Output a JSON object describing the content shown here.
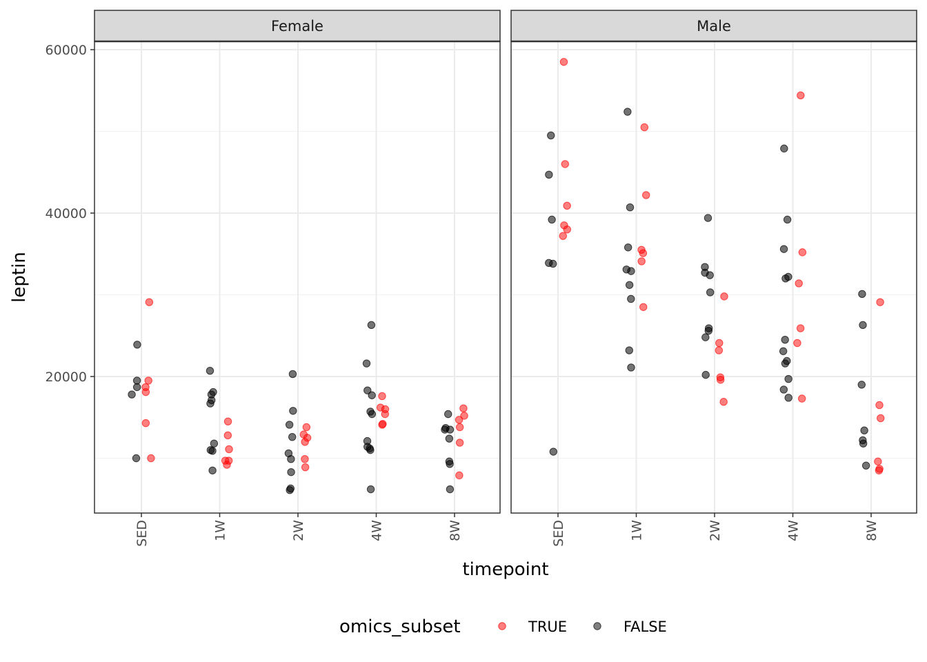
{
  "chart_data": {
    "type": "scatter",
    "title": "",
    "xlabel": "timepoint",
    "ylabel": "leptin",
    "categories": [
      "SED",
      "1W",
      "2W",
      "4W",
      "8W"
    ],
    "ylim": [
      3000,
      62000
    ],
    "yticks": [
      20000,
      40000,
      60000
    ],
    "grid": true,
    "legend": {
      "title": "omics_subset",
      "position": "bottom",
      "entries": [
        {
          "label": "TRUE",
          "color": "#ff0000"
        },
        {
          "label": "FALSE",
          "color": "#000000"
        }
      ]
    },
    "panels": [
      {
        "name": "Female",
        "points": [
          {
            "x": "SED",
            "y": 23900,
            "subset": false
          },
          {
            "x": "SED",
            "y": 19500,
            "subset": false
          },
          {
            "x": "SED",
            "y": 18700,
            "subset": false
          },
          {
            "x": "SED",
            "y": 17800,
            "subset": false
          },
          {
            "x": "SED",
            "y": 10000,
            "subset": false
          },
          {
            "x": "SED",
            "y": 29100,
            "subset": true
          },
          {
            "x": "SED",
            "y": 19500,
            "subset": true
          },
          {
            "x": "SED",
            "y": 18700,
            "subset": true
          },
          {
            "x": "SED",
            "y": 18100,
            "subset": true
          },
          {
            "x": "SED",
            "y": 14300,
            "subset": true
          },
          {
            "x": "SED",
            "y": 10000,
            "subset": true
          },
          {
            "x": "1W",
            "y": 20700,
            "subset": false
          },
          {
            "x": "1W",
            "y": 18100,
            "subset": false
          },
          {
            "x": "1W",
            "y": 17800,
            "subset": false
          },
          {
            "x": "1W",
            "y": 17100,
            "subset": false
          },
          {
            "x": "1W",
            "y": 16700,
            "subset": false
          },
          {
            "x": "1W",
            "y": 11800,
            "subset": false
          },
          {
            "x": "1W",
            "y": 11000,
            "subset": false
          },
          {
            "x": "1W",
            "y": 10900,
            "subset": false
          },
          {
            "x": "1W",
            "y": 8500,
            "subset": false
          },
          {
            "x": "1W",
            "y": 14500,
            "subset": true
          },
          {
            "x": "1W",
            "y": 12800,
            "subset": true
          },
          {
            "x": "1W",
            "y": 11100,
            "subset": true
          },
          {
            "x": "1W",
            "y": 9700,
            "subset": true
          },
          {
            "x": "1W",
            "y": 9700,
            "subset": true
          },
          {
            "x": "1W",
            "y": 9200,
            "subset": true
          },
          {
            "x": "2W",
            "y": 20300,
            "subset": false
          },
          {
            "x": "2W",
            "y": 15800,
            "subset": false
          },
          {
            "x": "2W",
            "y": 14100,
            "subset": false
          },
          {
            "x": "2W",
            "y": 12600,
            "subset": false
          },
          {
            "x": "2W",
            "y": 10600,
            "subset": false
          },
          {
            "x": "2W",
            "y": 9900,
            "subset": false
          },
          {
            "x": "2W",
            "y": 8300,
            "subset": false
          },
          {
            "x": "2W",
            "y": 6300,
            "subset": false
          },
          {
            "x": "2W",
            "y": 6100,
            "subset": false
          },
          {
            "x": "2W",
            "y": 13800,
            "subset": true
          },
          {
            "x": "2W",
            "y": 12900,
            "subset": true
          },
          {
            "x": "2W",
            "y": 12500,
            "subset": true
          },
          {
            "x": "2W",
            "y": 12000,
            "subset": true
          },
          {
            "x": "2W",
            "y": 9900,
            "subset": true
          },
          {
            "x": "2W",
            "y": 8900,
            "subset": true
          },
          {
            "x": "4W",
            "y": 26300,
            "subset": false
          },
          {
            "x": "4W",
            "y": 21600,
            "subset": false
          },
          {
            "x": "4W",
            "y": 18300,
            "subset": false
          },
          {
            "x": "4W",
            "y": 17700,
            "subset": false
          },
          {
            "x": "4W",
            "y": 15700,
            "subset": false
          },
          {
            "x": "4W",
            "y": 15400,
            "subset": false
          },
          {
            "x": "4W",
            "y": 12100,
            "subset": false
          },
          {
            "x": "4W",
            "y": 11400,
            "subset": false
          },
          {
            "x": "4W",
            "y": 11200,
            "subset": false
          },
          {
            "x": "4W",
            "y": 11000,
            "subset": false
          },
          {
            "x": "4W",
            "y": 6200,
            "subset": false
          },
          {
            "x": "4W",
            "y": 17600,
            "subset": true
          },
          {
            "x": "4W",
            "y": 16200,
            "subset": true
          },
          {
            "x": "4W",
            "y": 16000,
            "subset": true
          },
          {
            "x": "4W",
            "y": 15400,
            "subset": true
          },
          {
            "x": "4W",
            "y": 14200,
            "subset": true
          },
          {
            "x": "4W",
            "y": 14100,
            "subset": true
          },
          {
            "x": "8W",
            "y": 15400,
            "subset": false
          },
          {
            "x": "8W",
            "y": 13700,
            "subset": false
          },
          {
            "x": "8W",
            "y": 13500,
            "subset": false
          },
          {
            "x": "8W",
            "y": 13500,
            "subset": false
          },
          {
            "x": "8W",
            "y": 12400,
            "subset": false
          },
          {
            "x": "8W",
            "y": 9600,
            "subset": false
          },
          {
            "x": "8W",
            "y": 9300,
            "subset": false
          },
          {
            "x": "8W",
            "y": 6200,
            "subset": false
          },
          {
            "x": "8W",
            "y": 16100,
            "subset": true
          },
          {
            "x": "8W",
            "y": 15200,
            "subset": true
          },
          {
            "x": "8W",
            "y": 14700,
            "subset": true
          },
          {
            "x": "8W",
            "y": 13800,
            "subset": true
          },
          {
            "x": "8W",
            "y": 11900,
            "subset": true
          },
          {
            "x": "8W",
            "y": 7900,
            "subset": true
          }
        ]
      },
      {
        "name": "Male",
        "points": [
          {
            "x": "SED",
            "y": 49500,
            "subset": false
          },
          {
            "x": "SED",
            "y": 44700,
            "subset": false
          },
          {
            "x": "SED",
            "y": 39200,
            "subset": false
          },
          {
            "x": "SED",
            "y": 33900,
            "subset": false
          },
          {
            "x": "SED",
            "y": 33800,
            "subset": false
          },
          {
            "x": "SED",
            "y": 10800,
            "subset": false
          },
          {
            "x": "SED",
            "y": 58500,
            "subset": true
          },
          {
            "x": "SED",
            "y": 46000,
            "subset": true
          },
          {
            "x": "SED",
            "y": 40900,
            "subset": true
          },
          {
            "x": "SED",
            "y": 38500,
            "subset": true
          },
          {
            "x": "SED",
            "y": 38000,
            "subset": true
          },
          {
            "x": "SED",
            "y": 37200,
            "subset": true
          },
          {
            "x": "1W",
            "y": 52400,
            "subset": false
          },
          {
            "x": "1W",
            "y": 40700,
            "subset": false
          },
          {
            "x": "1W",
            "y": 35800,
            "subset": false
          },
          {
            "x": "1W",
            "y": 33100,
            "subset": false
          },
          {
            "x": "1W",
            "y": 32900,
            "subset": false
          },
          {
            "x": "1W",
            "y": 31200,
            "subset": false
          },
          {
            "x": "1W",
            "y": 29500,
            "subset": false
          },
          {
            "x": "1W",
            "y": 23200,
            "subset": false
          },
          {
            "x": "1W",
            "y": 21100,
            "subset": false
          },
          {
            "x": "1W",
            "y": 50500,
            "subset": true
          },
          {
            "x": "1W",
            "y": 42200,
            "subset": true
          },
          {
            "x": "1W",
            "y": 35500,
            "subset": true
          },
          {
            "x": "1W",
            "y": 35100,
            "subset": true
          },
          {
            "x": "1W",
            "y": 34100,
            "subset": true
          },
          {
            "x": "1W",
            "y": 28500,
            "subset": true
          },
          {
            "x": "2W",
            "y": 39400,
            "subset": false
          },
          {
            "x": "2W",
            "y": 33400,
            "subset": false
          },
          {
            "x": "2W",
            "y": 32700,
            "subset": false
          },
          {
            "x": "2W",
            "y": 32400,
            "subset": false
          },
          {
            "x": "2W",
            "y": 30300,
            "subset": false
          },
          {
            "x": "2W",
            "y": 25900,
            "subset": false
          },
          {
            "x": "2W",
            "y": 25600,
            "subset": false
          },
          {
            "x": "2W",
            "y": 24800,
            "subset": false
          },
          {
            "x": "2W",
            "y": 20200,
            "subset": false
          },
          {
            "x": "2W",
            "y": 29800,
            "subset": true
          },
          {
            "x": "2W",
            "y": 24100,
            "subset": true
          },
          {
            "x": "2W",
            "y": 23200,
            "subset": true
          },
          {
            "x": "2W",
            "y": 19900,
            "subset": true
          },
          {
            "x": "2W",
            "y": 19600,
            "subset": true
          },
          {
            "x": "2W",
            "y": 16900,
            "subset": true
          },
          {
            "x": "4W",
            "y": 47900,
            "subset": false
          },
          {
            "x": "4W",
            "y": 39200,
            "subset": false
          },
          {
            "x": "4W",
            "y": 35600,
            "subset": false
          },
          {
            "x": "4W",
            "y": 32200,
            "subset": false
          },
          {
            "x": "4W",
            "y": 32000,
            "subset": false
          },
          {
            "x": "4W",
            "y": 24500,
            "subset": false
          },
          {
            "x": "4W",
            "y": 23100,
            "subset": false
          },
          {
            "x": "4W",
            "y": 21900,
            "subset": false
          },
          {
            "x": "4W",
            "y": 21600,
            "subset": false
          },
          {
            "x": "4W",
            "y": 19700,
            "subset": false
          },
          {
            "x": "4W",
            "y": 18400,
            "subset": false
          },
          {
            "x": "4W",
            "y": 17400,
            "subset": false
          },
          {
            "x": "4W",
            "y": 54400,
            "subset": true
          },
          {
            "x": "4W",
            "y": 35200,
            "subset": true
          },
          {
            "x": "4W",
            "y": 31400,
            "subset": true
          },
          {
            "x": "4W",
            "y": 25900,
            "subset": true
          },
          {
            "x": "4W",
            "y": 24100,
            "subset": true
          },
          {
            "x": "4W",
            "y": 17300,
            "subset": true
          },
          {
            "x": "8W",
            "y": 30100,
            "subset": false
          },
          {
            "x": "8W",
            "y": 26300,
            "subset": false
          },
          {
            "x": "8W",
            "y": 19000,
            "subset": false
          },
          {
            "x": "8W",
            "y": 13400,
            "subset": false
          },
          {
            "x": "8W",
            "y": 12200,
            "subset": false
          },
          {
            "x": "8W",
            "y": 11800,
            "subset": false
          },
          {
            "x": "8W",
            "y": 9100,
            "subset": false
          },
          {
            "x": "8W",
            "y": 29100,
            "subset": true
          },
          {
            "x": "8W",
            "y": 16500,
            "subset": true
          },
          {
            "x": "8W",
            "y": 14900,
            "subset": true
          },
          {
            "x": "8W",
            "y": 9600,
            "subset": true
          },
          {
            "x": "8W",
            "y": 8700,
            "subset": true
          },
          {
            "x": "8W",
            "y": 8500,
            "subset": true
          }
        ]
      }
    ]
  }
}
